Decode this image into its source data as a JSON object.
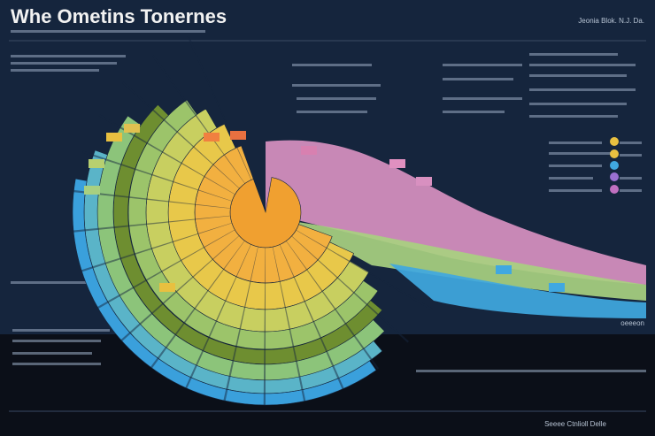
{
  "header": {
    "title": "Whe Ometins Tonernes",
    "corner_label": "Jeonia Blok. N.J. Da."
  },
  "labels": {
    "right_callout": "oeeeon",
    "footer_note": "Seeee Ctnlioll Delle"
  }
}
